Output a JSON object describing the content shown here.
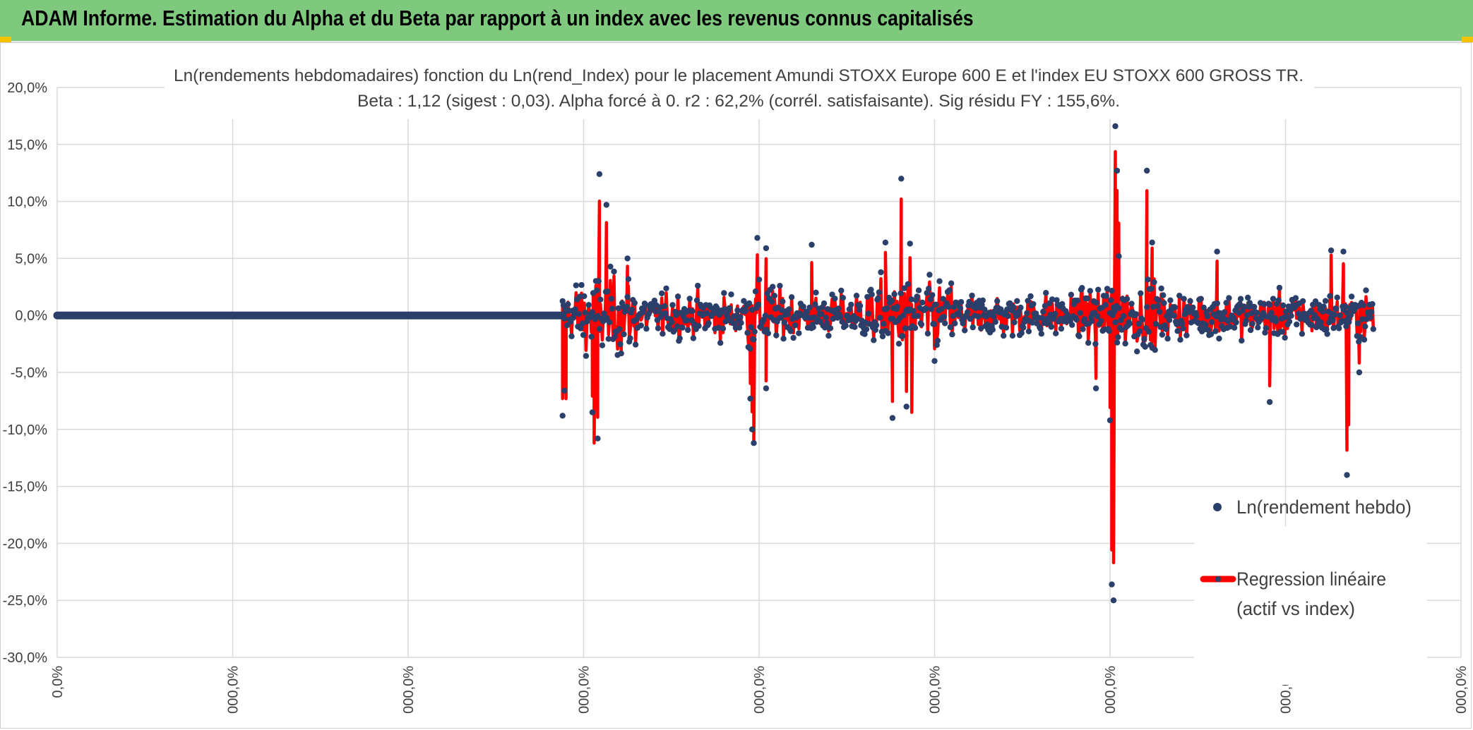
{
  "header": {
    "title": "ADAM Informe. Estimation du Alpha et du Beta par rapport à un index avec les revenus connus capitalisés"
  },
  "colors": {
    "header_bg": "#7fc97f",
    "scatter": "#2b3f6b",
    "regression": "#ff0000",
    "grid": "#d9d9d9"
  },
  "chart_data": {
    "type": "scatter",
    "title_line1": "Ln(rendements hebdomadaires) fonction du Ln(rend_Index) pour le placement Amundi STOXX Europe 600 E et l'index EU STOXX 600 GROSS TR.",
    "title_line2": "Beta : 1,12 (sigest : 0,03). Alpha forcé à 0. r2 : 62,2% (corrél. satisfaisante). Sig résidu FY : 155,6%.",
    "ylim": [
      -0.3,
      0.2
    ],
    "yticks": [
      "20,0%",
      "15,0%",
      "10,0%",
      "5,0%",
      "0,0%",
      "-5,0%",
      "-10,0%",
      "-15,0%",
      "-20,0%",
      "-25,0%",
      "-30,0%"
    ],
    "xticks": [
      "0,0%",
      "000,0%",
      "000,0%",
      "000,0%",
      "000,0%",
      "000,0%",
      "000,0%",
      "000,0%",
      "000,0%"
    ],
    "x_range": [
      0,
      8
    ],
    "grid": true,
    "legend": [
      {
        "name": "Ln(rendement hebdo)",
        "marker": "dot"
      },
      {
        "name": "Regression linéaire (actif vs index)",
        "name_line1": "Regression linéaire",
        "name_line2": "(actif vs index)",
        "marker": "line"
      }
    ],
    "legend_position": "right",
    "series": [
      {
        "name": "Ln(rendement hebdo)",
        "kind": "points",
        "flat_segment": {
          "x": [
            0,
            2.88
          ],
          "y": 0
        },
        "active_range_x": [
          2.88,
          7.5
        ],
        "notable_points": [
          {
            "x": 2.88,
            "y": -0.088
          },
          {
            "x": 2.89,
            "y": -0.066
          },
          {
            "x": 3.05,
            "y": -0.085
          },
          {
            "x": 3.08,
            "y": -0.108
          },
          {
            "x": 3.09,
            "y": 0.124
          },
          {
            "x": 3.13,
            "y": 0.097
          },
          {
            "x": 3.25,
            "y": 0.05
          },
          {
            "x": 3.95,
            "y": -0.073
          },
          {
            "x": 3.96,
            "y": -0.1
          },
          {
            "x": 3.97,
            "y": -0.112
          },
          {
            "x": 3.99,
            "y": 0.068
          },
          {
            "x": 4.04,
            "y": 0.059
          },
          {
            "x": 4.04,
            "y": -0.064
          },
          {
            "x": 4.3,
            "y": 0.062
          },
          {
            "x": 4.72,
            "y": 0.064
          },
          {
            "x": 4.81,
            "y": 0.12
          },
          {
            "x": 4.76,
            "y": -0.09
          },
          {
            "x": 4.84,
            "y": -0.08
          },
          {
            "x": 4.86,
            "y": 0.063
          },
          {
            "x": 5.0,
            "y": -0.04
          },
          {
            "x": 5.92,
            "y": -0.064
          },
          {
            "x": 6.0,
            "y": -0.092
          },
          {
            "x": 6.01,
            "y": -0.236
          },
          {
            "x": 6.02,
            "y": -0.25
          },
          {
            "x": 6.03,
            "y": 0.166
          },
          {
            "x": 6.04,
            "y": 0.127
          },
          {
            "x": 6.05,
            "y": 0.052
          },
          {
            "x": 6.21,
            "y": 0.127
          },
          {
            "x": 6.24,
            "y": 0.064
          },
          {
            "x": 6.61,
            "y": 0.056
          },
          {
            "x": 6.91,
            "y": -0.076
          },
          {
            "x": 7.26,
            "y": 0.057
          },
          {
            "x": 7.35,
            "y": -0.14
          },
          {
            "x": 7.33,
            "y": 0.056
          },
          {
            "x": 7.42,
            "y": -0.05
          }
        ]
      },
      {
        "name": "Regression linéaire (actif vs index)",
        "kind": "line",
        "beta": 1.12,
        "notable_points": [
          {
            "x": 2.9,
            "y": -0.073
          },
          {
            "x": 3.06,
            "y": -0.112
          },
          {
            "x": 3.09,
            "y": 0.089
          },
          {
            "x": 3.13,
            "y": 0.066
          },
          {
            "x": 3.97,
            "y": -0.112
          },
          {
            "x": 4.81,
            "y": 0.062
          },
          {
            "x": 4.87,
            "y": -0.085
          },
          {
            "x": 6.01,
            "y": -0.161
          },
          {
            "x": 6.05,
            "y": 0.081
          },
          {
            "x": 7.36,
            "y": -0.096
          }
        ]
      }
    ]
  }
}
